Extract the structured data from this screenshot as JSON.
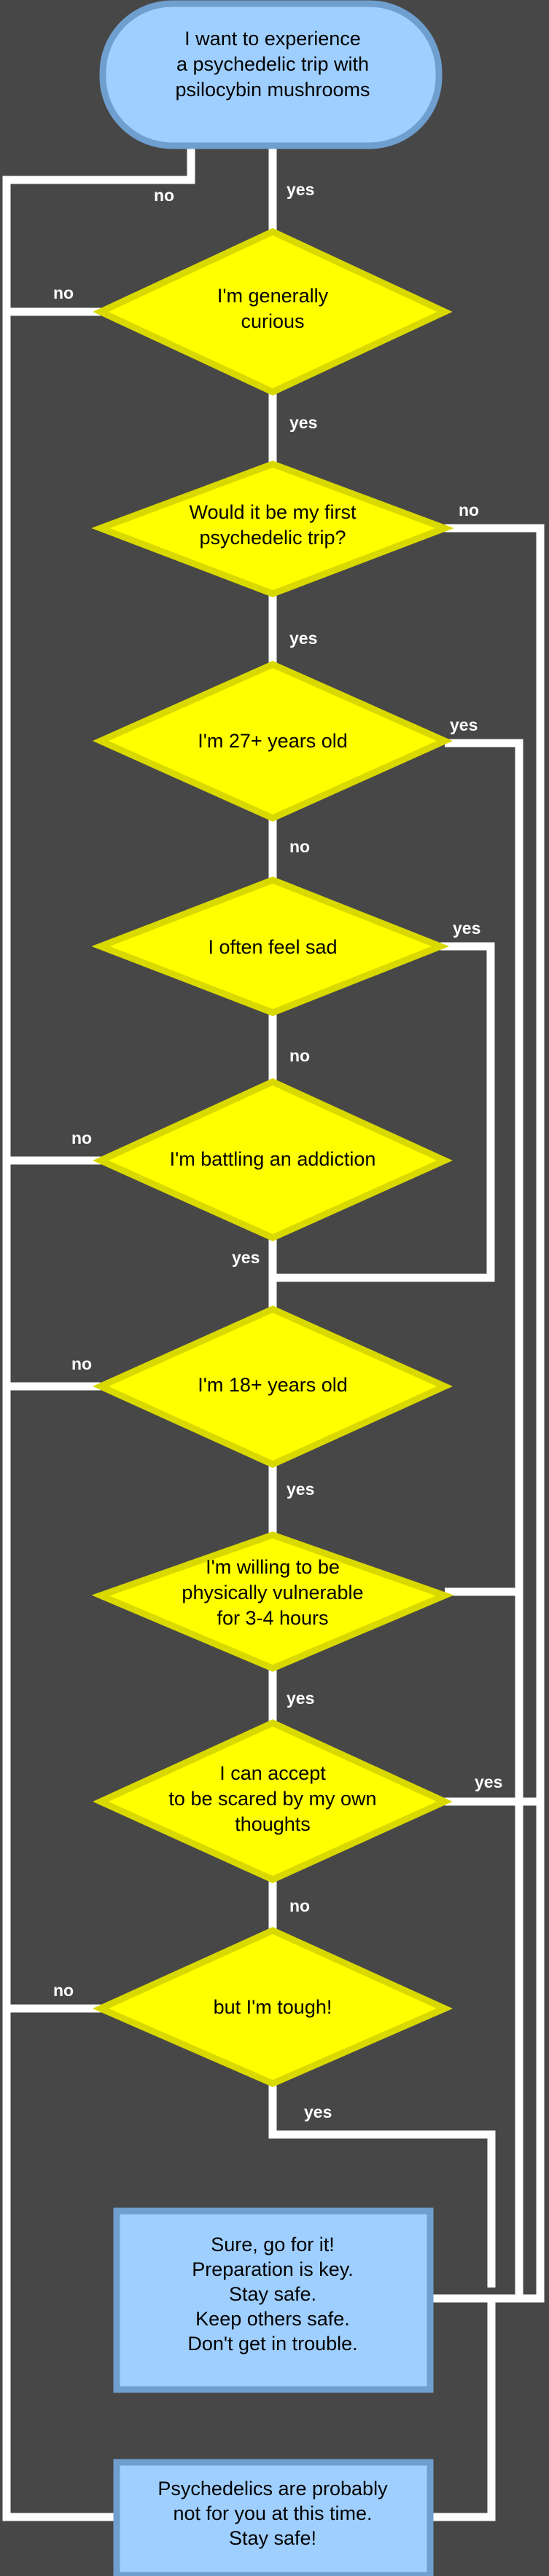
{
  "colors": {
    "background": "#474747",
    "line": "#ffffff",
    "decision_fill": "#ffff00",
    "decision_stroke": "#d9d900",
    "terminal_fill": "#9fcfff",
    "terminal_stroke": "#6f9fcf"
  },
  "nodes": {
    "start": [
      "I want to experience",
      "a psychedelic trip with",
      "psilocybin mushrooms"
    ],
    "curious": [
      "I'm generally",
      "curious"
    ],
    "first_trip": [
      "Would it be my first",
      "psychedelic trip?"
    ],
    "age27": [
      "I'm 27+ years old"
    ],
    "sad": [
      "I often feel sad"
    ],
    "addiction": [
      "I'm battling an addiction"
    ],
    "age18": [
      "I'm 18+ years old"
    ],
    "vulnerable": [
      "I'm willing to be",
      "physically vulnerable",
      "for 3-4 hours"
    ],
    "scared": [
      "I can accept",
      "to be scared by my own",
      "thoughts"
    ],
    "tough": [
      "but I'm tough!"
    ],
    "go": [
      "Sure, go for it!",
      "Preparation is key.",
      "Stay safe.",
      "Keep others safe.",
      "Don't get in trouble."
    ],
    "not_for_you": [
      "Psychedelics are probably",
      "not for you at this time.",
      "Stay safe!"
    ]
  },
  "labels": {
    "yes": "yes",
    "no": "no"
  }
}
